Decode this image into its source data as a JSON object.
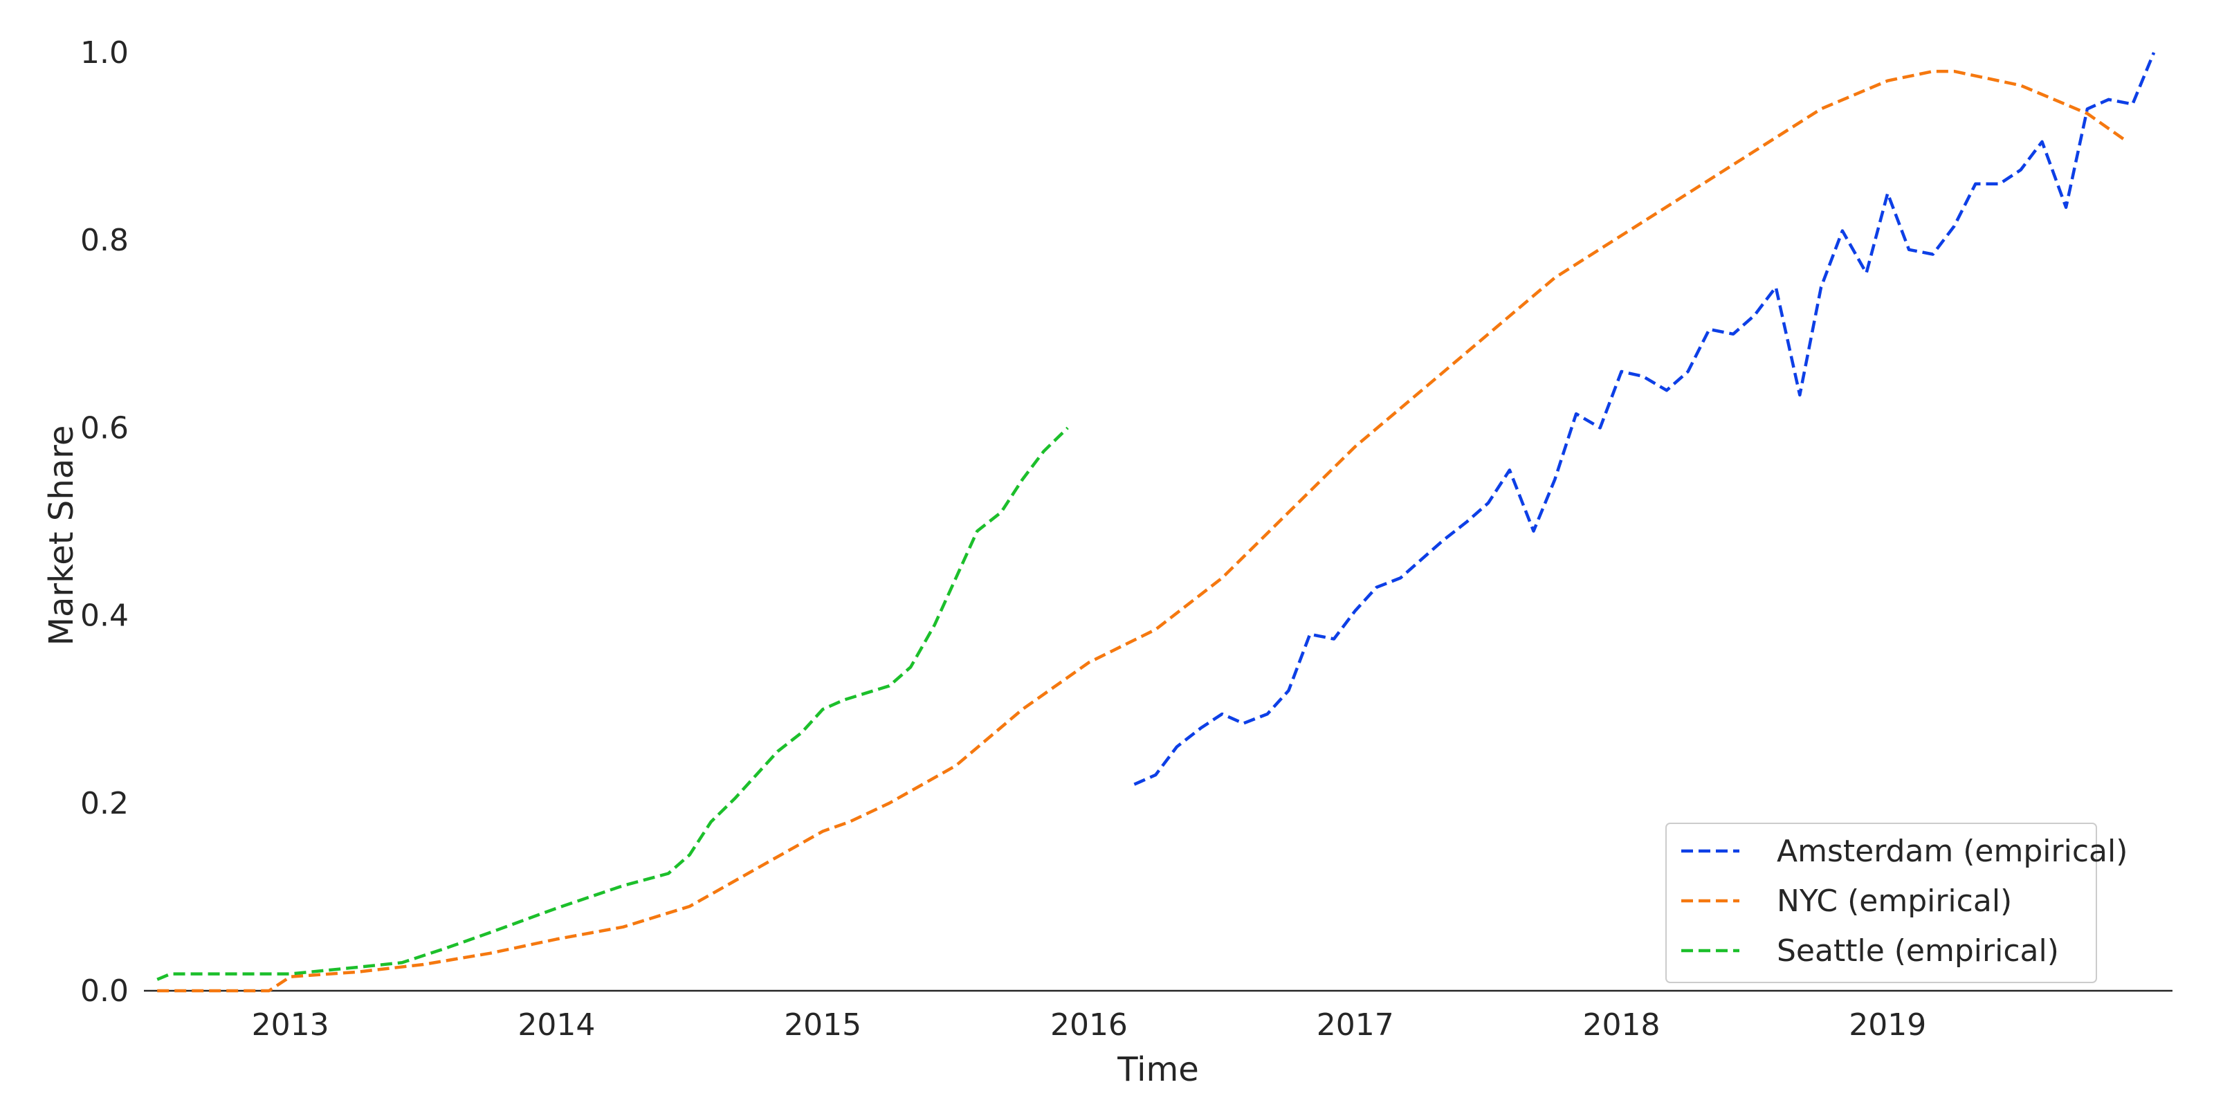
{
  "chart_data": {
    "type": "line",
    "title": "",
    "xlabel": "Time",
    "ylabel": "Market Share",
    "xlim": [
      2012.45,
      2020.07
    ],
    "ylim": [
      0.0,
      1.0
    ],
    "x_ticks": [
      2013,
      2014,
      2015,
      2016,
      2017,
      2018,
      2019
    ],
    "x_tick_labels": [
      "2013",
      "2014",
      "2015",
      "2016",
      "2017",
      "2018",
      "2019"
    ],
    "y_ticks": [
      0.0,
      0.2,
      0.4,
      0.6,
      0.8,
      1.0
    ],
    "y_tick_labels": [
      "0.0",
      "0.2",
      "0.4",
      "0.6",
      "0.8",
      "1.0"
    ],
    "grid": false,
    "legend_position": "bottom-right",
    "series": [
      {
        "name": "Amsterdam (empirical)",
        "color": "#0d3fe6",
        "points": [
          [
            2016.17,
            0.22
          ],
          [
            2016.25,
            0.23
          ],
          [
            2016.33,
            0.26
          ],
          [
            2016.42,
            0.28
          ],
          [
            2016.5,
            0.295
          ],
          [
            2016.58,
            0.285
          ],
          [
            2016.67,
            0.295
          ],
          [
            2016.75,
            0.32
          ],
          [
            2016.83,
            0.38
          ],
          [
            2016.92,
            0.375
          ],
          [
            2017.0,
            0.405
          ],
          [
            2017.08,
            0.43
          ],
          [
            2017.17,
            0.44
          ],
          [
            2017.25,
            0.46
          ],
          [
            2017.33,
            0.48
          ],
          [
            2017.42,
            0.5
          ],
          [
            2017.5,
            0.52
          ],
          [
            2017.58,
            0.555
          ],
          [
            2017.67,
            0.49
          ],
          [
            2017.75,
            0.545
          ],
          [
            2017.83,
            0.615
          ],
          [
            2017.92,
            0.6
          ],
          [
            2018.0,
            0.66
          ],
          [
            2018.08,
            0.655
          ],
          [
            2018.17,
            0.64
          ],
          [
            2018.25,
            0.66
          ],
          [
            2018.33,
            0.705
          ],
          [
            2018.42,
            0.7
          ],
          [
            2018.5,
            0.72
          ],
          [
            2018.58,
            0.75
          ],
          [
            2018.67,
            0.635
          ],
          [
            2018.75,
            0.75
          ],
          [
            2018.83,
            0.81
          ],
          [
            2018.92,
            0.765
          ],
          [
            2019.0,
            0.85
          ],
          [
            2019.08,
            0.79
          ],
          [
            2019.17,
            0.785
          ],
          [
            2019.25,
            0.815
          ],
          [
            2019.33,
            0.86
          ],
          [
            2019.42,
            0.86
          ],
          [
            2019.5,
            0.875
          ],
          [
            2019.58,
            0.905
          ],
          [
            2019.67,
            0.835
          ],
          [
            2019.75,
            0.94
          ],
          [
            2019.83,
            0.95
          ],
          [
            2019.92,
            0.945
          ],
          [
            2020.0,
            1.0
          ]
        ]
      },
      {
        "name": "NYC (empirical)",
        "color": "#f5780f",
        "points": [
          [
            2012.5,
            0.0
          ],
          [
            2012.92,
            0.0
          ],
          [
            2013.0,
            0.015
          ],
          [
            2013.25,
            0.02
          ],
          [
            2013.5,
            0.028
          ],
          [
            2013.75,
            0.04
          ],
          [
            2014.0,
            0.055
          ],
          [
            2014.25,
            0.068
          ],
          [
            2014.5,
            0.09
          ],
          [
            2014.75,
            0.13
          ],
          [
            2015.0,
            0.17
          ],
          [
            2015.1,
            0.18
          ],
          [
            2015.25,
            0.2
          ],
          [
            2015.5,
            0.24
          ],
          [
            2015.75,
            0.3
          ],
          [
            2016.0,
            0.35
          ],
          [
            2016.25,
            0.385
          ],
          [
            2016.5,
            0.44
          ],
          [
            2016.75,
            0.51
          ],
          [
            2017.0,
            0.58
          ],
          [
            2017.25,
            0.64
          ],
          [
            2017.5,
            0.7
          ],
          [
            2017.75,
            0.76
          ],
          [
            2018.0,
            0.805
          ],
          [
            2018.25,
            0.85
          ],
          [
            2018.5,
            0.895
          ],
          [
            2018.75,
            0.94
          ],
          [
            2019.0,
            0.97
          ],
          [
            2019.17,
            0.98
          ],
          [
            2019.25,
            0.98
          ],
          [
            2019.5,
            0.965
          ],
          [
            2019.75,
            0.935
          ],
          [
            2019.9,
            0.905
          ]
        ]
      },
      {
        "name": "Seattle (empirical)",
        "color": "#1cbf2b",
        "points": [
          [
            2012.5,
            0.012
          ],
          [
            2012.55,
            0.018
          ],
          [
            2012.75,
            0.018
          ],
          [
            2013.0,
            0.018
          ],
          [
            2013.25,
            0.025
          ],
          [
            2013.42,
            0.03
          ],
          [
            2013.58,
            0.045
          ],
          [
            2013.75,
            0.062
          ],
          [
            2014.0,
            0.088
          ],
          [
            2014.25,
            0.112
          ],
          [
            2014.42,
            0.125
          ],
          [
            2014.5,
            0.145
          ],
          [
            2014.58,
            0.18
          ],
          [
            2014.67,
            0.205
          ],
          [
            2014.75,
            0.23
          ],
          [
            2014.83,
            0.255
          ],
          [
            2014.92,
            0.275
          ],
          [
            2015.0,
            0.3
          ],
          [
            2015.08,
            0.31
          ],
          [
            2015.17,
            0.318
          ],
          [
            2015.25,
            0.325
          ],
          [
            2015.33,
            0.345
          ],
          [
            2015.42,
            0.39
          ],
          [
            2015.5,
            0.44
          ],
          [
            2015.58,
            0.49
          ],
          [
            2015.67,
            0.51
          ],
          [
            2015.75,
            0.545
          ],
          [
            2015.83,
            0.575
          ],
          [
            2015.92,
            0.6
          ]
        ]
      }
    ]
  }
}
